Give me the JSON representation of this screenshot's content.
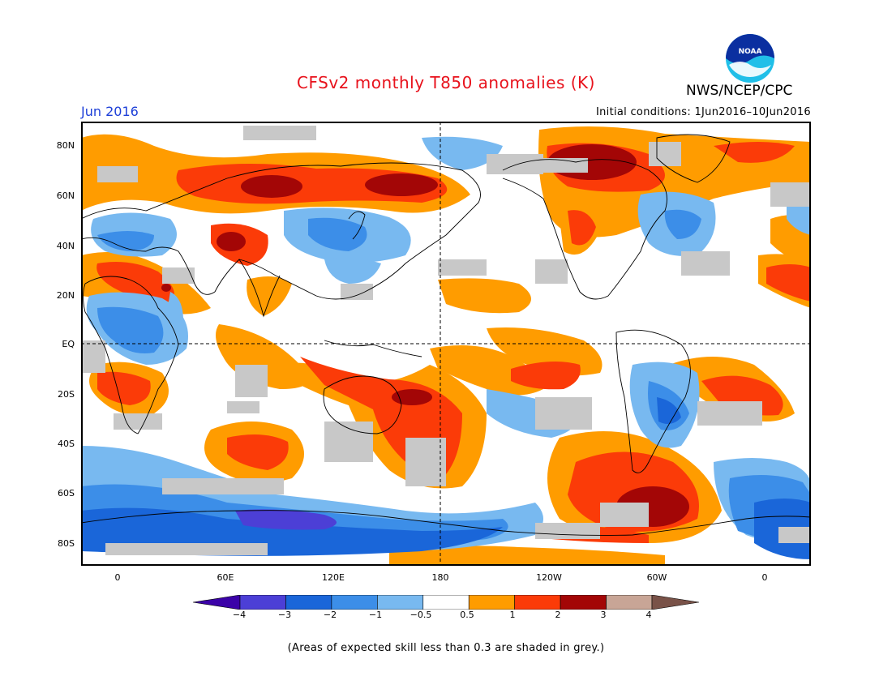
{
  "title": "CFSv2 monthly T850 anomalies (K)",
  "organization": "NWS/NCEP/CPC",
  "logo_text": "NOAA",
  "valid_month": "Jun 2016",
  "initial_conditions": "Initial conditions: 1Jun2016–10Jun2016",
  "footnote": "(Areas of expected skill less than 0.3 are shaded in grey.)",
  "lat_labels": [
    "80N",
    "60N",
    "40N",
    "20N",
    "EQ",
    "20S",
    "40S",
    "60S",
    "80S"
  ],
  "lon_labels": [
    "0",
    "60E",
    "120E",
    "180",
    "120W",
    "60W",
    "0"
  ],
  "colorbar": {
    "labels": [
      "−4",
      "−3",
      "−2",
      "−1",
      "−0.5",
      "0.5",
      "1",
      "2",
      "3",
      "4"
    ],
    "colors": [
      "#3b02a8",
      "#4c3fd6",
      "#1a66d9",
      "#3c8ee8",
      "#78b9f0",
      "#ffffff",
      "#ff9c00",
      "#fb3b08",
      "#a30606",
      "#c8a596",
      "#795248"
    ]
  },
  "colors": {
    "title": "#e8121c",
    "month_label": "#1d3fd8",
    "low_skill_grey": "#c8c8c8"
  }
}
